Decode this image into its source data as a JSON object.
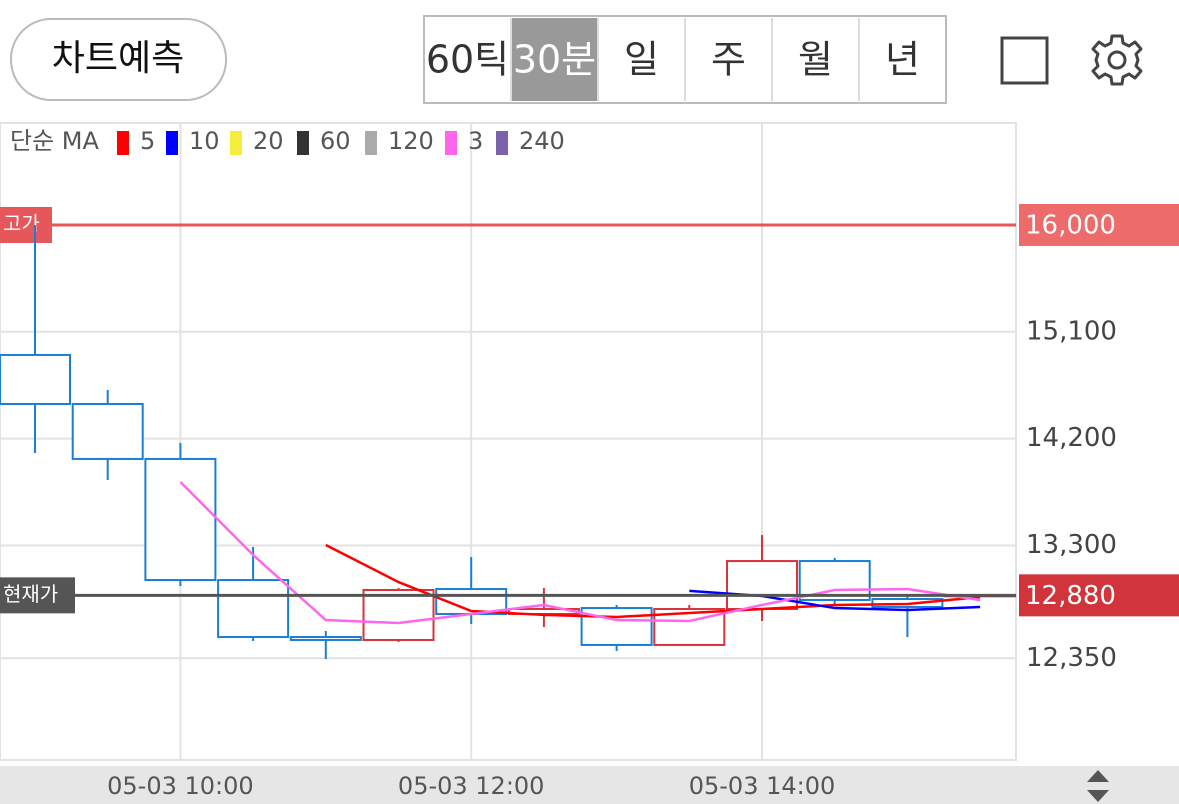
{
  "ui": {
    "predict_button": "차트예측",
    "periods": [
      "60틱",
      "30분",
      "일",
      "주",
      "월",
      "년"
    ],
    "selected_period": 1
  },
  "chart_data": {
    "type": "candlestick",
    "legend_title": "단순 MA",
    "categories": [
      null,
      null,
      "05-03 10:00",
      null,
      null,
      null,
      "05-03 12:00",
      null,
      null,
      null,
      "05-03 14:00",
      null,
      null,
      null
    ],
    "open": [
      14905,
      14492,
      14029,
      13009,
      12529,
      12504,
      12933,
      12723,
      12773,
      12462,
      12765,
      13169,
      12849,
      12880
    ],
    "high": [
      16000,
      14610,
      14163,
      13287,
      12580,
      12942,
      13203,
      12942,
      12799,
      12799,
      13388,
      13195,
      12874,
      12880
    ],
    "low": [
      14079,
      13852,
      12959,
      12495,
      12344,
      12487,
      12639,
      12613,
      12411,
      12462,
      12664,
      12799,
      12529,
      12880
    ],
    "close": [
      14492,
      14029,
      13009,
      12529,
      12504,
      12925,
      12723,
      12765,
      12462,
      12765,
      13169,
      12841,
      12782,
      12880
    ],
    "up_color": "#d9333b",
    "down_color": "#1a7fd4",
    "series": [
      {
        "name": "5",
        "color": "#ff0000",
        "values": [
          null,
          null,
          null,
          null,
          13304,
          12992,
          12748,
          12715,
          12698,
          12731,
          12765,
          12799,
          12807,
          12866
        ]
      },
      {
        "name": "10",
        "color": "#0000ff",
        "values": [
          null,
          null,
          null,
          null,
          null,
          null,
          null,
          null,
          null,
          12918,
          12875,
          12773,
          12757,
          12782
        ]
      },
      {
        "name": "20",
        "color": "#f5ee3c",
        "values": [
          null,
          null,
          null,
          null,
          null,
          null,
          null,
          null,
          null,
          null,
          null,
          null,
          null,
          null
        ]
      },
      {
        "name": "60",
        "color": "#333333",
        "values": [
          null,
          null,
          null,
          null,
          null,
          null,
          null,
          null,
          null,
          null,
          null,
          null,
          null,
          null
        ]
      },
      {
        "name": "120",
        "color": "#aaaaaa",
        "values": [
          null,
          null,
          null,
          null,
          null,
          null,
          null,
          null,
          null,
          null,
          null,
          null,
          null,
          null
        ]
      },
      {
        "name": "3",
        "color": "#ff66ee",
        "values": [
          null,
          null,
          13835,
          13220,
          12672,
          12647,
          12723,
          12799,
          12672,
          12664,
          12799,
          12925,
          12933,
          12841
        ]
      },
      {
        "name": "240",
        "color": "#7a63a8",
        "values": [
          null,
          null,
          null,
          null,
          null,
          null,
          null,
          null,
          null,
          null,
          null,
          null,
          null,
          null
        ]
      }
    ],
    "ylim": [
      11493,
      16859
    ],
    "yticks": [
      {
        "value": 15100,
        "label": "15,100"
      },
      {
        "value": 14200,
        "label": "14,200"
      },
      {
        "value": 13300,
        "label": "13,300"
      },
      {
        "value": 12350,
        "label": "12,350"
      }
    ],
    "grid": true,
    "high_line": {
      "value": 16000,
      "label": "16,000",
      "tag": "고가",
      "color": "#e5575a"
    },
    "current_line": {
      "value": 12880,
      "label": "12,880",
      "tag": "현재가",
      "color": "#555555"
    }
  }
}
